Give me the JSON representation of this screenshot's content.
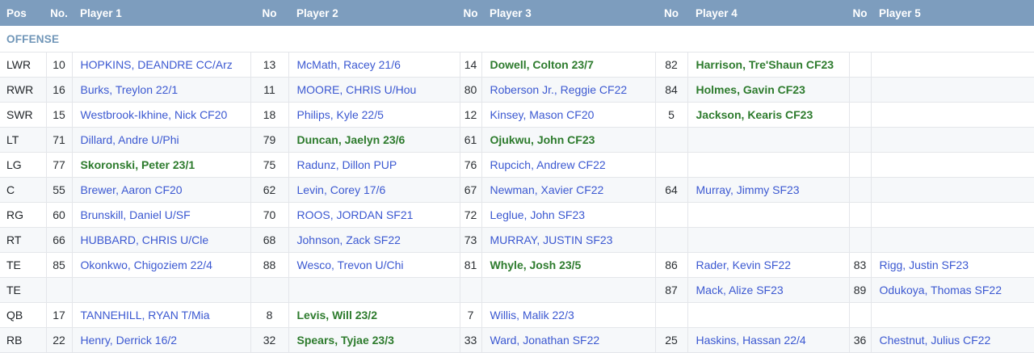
{
  "colors": {
    "header_bg": "#7d9dbe",
    "header_text": "#ffffff",
    "section_text": "#7096b8",
    "link_blue": "#3b58d1",
    "rookie_green": "#2d7b2d",
    "alt_row": "#f6f8fa"
  },
  "table": {
    "headers": [
      "Pos",
      "No.",
      "Player 1",
      "No",
      "Player 2",
      "No",
      "Player 3",
      "No",
      "Player 4",
      "No",
      "Player 5"
    ],
    "section": "OFFENSE",
    "rows": [
      {
        "pos": "LWR",
        "players": [
          {
            "no": "10",
            "name": "HOPKINS, DEANDRE CC/Arz",
            "style": "link"
          },
          {
            "no": "13",
            "name": "McMath, Racey 21/6",
            "style": "link"
          },
          {
            "no": "14",
            "name": "Dowell, Colton 23/7",
            "style": "rookie"
          },
          {
            "no": "82",
            "name": "Harrison, Tre'Shaun CF23",
            "style": "rookie"
          },
          null
        ]
      },
      {
        "pos": "RWR",
        "players": [
          {
            "no": "16",
            "name": "Burks, Treylon 22/1",
            "style": "link"
          },
          {
            "no": "11",
            "name": "MOORE, CHRIS U/Hou",
            "style": "link"
          },
          {
            "no": "80",
            "name": "Roberson Jr., Reggie CF22",
            "style": "link"
          },
          {
            "no": "84",
            "name": "Holmes, Gavin CF23",
            "style": "rookie"
          },
          null
        ]
      },
      {
        "pos": "SWR",
        "players": [
          {
            "no": "15",
            "name": "Westbrook-Ikhine, Nick CF20",
            "style": "link"
          },
          {
            "no": "18",
            "name": "Philips, Kyle 22/5",
            "style": "link"
          },
          {
            "no": "12",
            "name": "Kinsey, Mason CF20",
            "style": "link"
          },
          {
            "no": "5",
            "name": "Jackson, Kearis CF23",
            "style": "rookie"
          },
          null
        ]
      },
      {
        "pos": "LT",
        "players": [
          {
            "no": "71",
            "name": "Dillard, Andre U/Phi",
            "style": "link"
          },
          {
            "no": "79",
            "name": "Duncan, Jaelyn 23/6",
            "style": "rookie"
          },
          {
            "no": "61",
            "name": "Ojukwu, John CF23",
            "style": "rookie"
          },
          null,
          null
        ]
      },
      {
        "pos": "LG",
        "players": [
          {
            "no": "77",
            "name": "Skoronski, Peter 23/1",
            "style": "rookie"
          },
          {
            "no": "75",
            "name": "Radunz, Dillon PUP",
            "style": "link"
          },
          {
            "no": "76",
            "name": "Rupcich, Andrew CF22",
            "style": "link"
          },
          null,
          null
        ]
      },
      {
        "pos": "C",
        "players": [
          {
            "no": "55",
            "name": "Brewer, Aaron CF20",
            "style": "link"
          },
          {
            "no": "62",
            "name": "Levin, Corey 17/6",
            "style": "link"
          },
          {
            "no": "67",
            "name": "Newman, Xavier CF22",
            "style": "link"
          },
          {
            "no": "64",
            "name": "Murray, Jimmy SF23",
            "style": "link"
          },
          null
        ]
      },
      {
        "pos": "RG",
        "players": [
          {
            "no": "60",
            "name": "Brunskill, Daniel U/SF",
            "style": "link"
          },
          {
            "no": "70",
            "name": "ROOS, JORDAN SF21",
            "style": "link"
          },
          {
            "no": "72",
            "name": "Leglue, John SF23",
            "style": "link"
          },
          null,
          null
        ]
      },
      {
        "pos": "RT",
        "players": [
          {
            "no": "66",
            "name": "HUBBARD, CHRIS U/Cle",
            "style": "link"
          },
          {
            "no": "68",
            "name": "Johnson, Zack SF22",
            "style": "link"
          },
          {
            "no": "73",
            "name": "MURRAY, JUSTIN SF23",
            "style": "link"
          },
          null,
          null
        ]
      },
      {
        "pos": "TE",
        "players": [
          {
            "no": "85",
            "name": "Okonkwo, Chigoziem 22/4",
            "style": "link"
          },
          {
            "no": "88",
            "name": "Wesco, Trevon U/Chi",
            "style": "link"
          },
          {
            "no": "81",
            "name": "Whyle, Josh 23/5",
            "style": "rookie"
          },
          {
            "no": "86",
            "name": "Rader, Kevin SF22",
            "style": "link"
          },
          {
            "no": "83",
            "name": "Rigg, Justin SF23",
            "style": "link"
          }
        ]
      },
      {
        "pos": "TE",
        "players": [
          null,
          null,
          null,
          {
            "no": "87",
            "name": "Mack, Alize SF23",
            "style": "link"
          },
          {
            "no": "89",
            "name": "Odukoya, Thomas SF22",
            "style": "link"
          }
        ]
      },
      {
        "pos": "QB",
        "players": [
          {
            "no": "17",
            "name": "TANNEHILL, RYAN T/Mia",
            "style": "link"
          },
          {
            "no": "8",
            "name": "Levis, Will 23/2",
            "style": "rookie"
          },
          {
            "no": "7",
            "name": "Willis, Malik 22/3",
            "style": "link"
          },
          null,
          null
        ]
      },
      {
        "pos": "RB",
        "players": [
          {
            "no": "22",
            "name": "Henry, Derrick 16/2",
            "style": "link"
          },
          {
            "no": "32",
            "name": "Spears, Tyjae 23/3",
            "style": "rookie"
          },
          {
            "no": "33",
            "name": "Ward, Jonathan SF22",
            "style": "link"
          },
          {
            "no": "25",
            "name": "Haskins, Hassan 22/4",
            "style": "link"
          },
          {
            "no": "36",
            "name": "Chestnut, Julius CF22",
            "style": "link"
          }
        ]
      }
    ]
  }
}
